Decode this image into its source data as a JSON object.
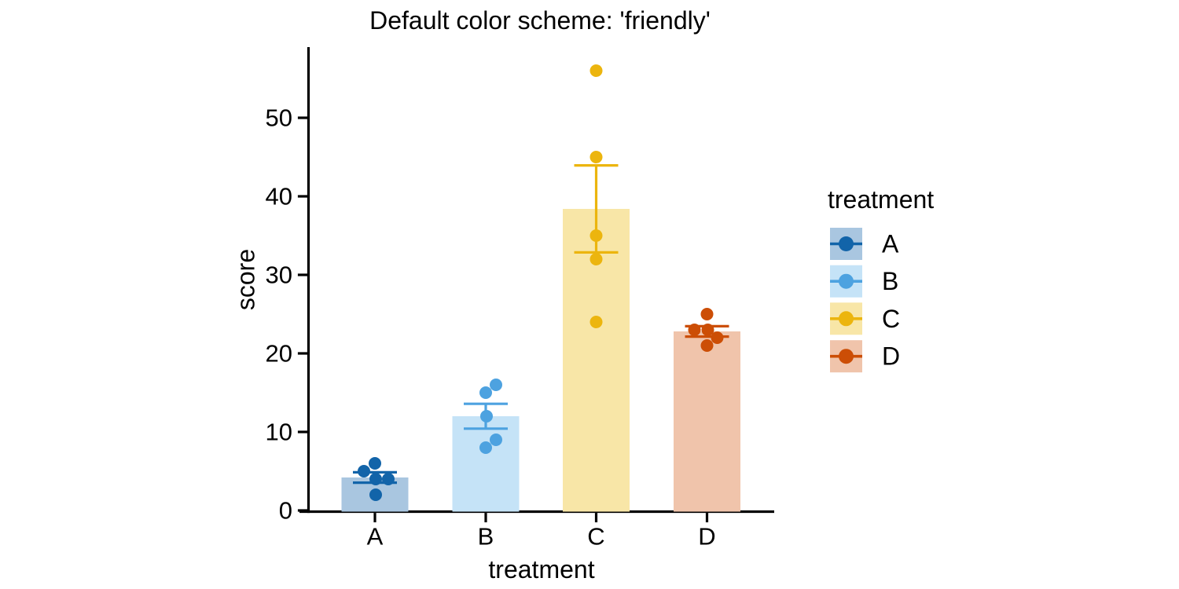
{
  "chart_data": {
    "type": "bar",
    "title": "Default color scheme: 'friendly'",
    "xlabel": "treatment",
    "ylabel": "score",
    "categories": [
      "A",
      "B",
      "C",
      "D"
    ],
    "series": [
      {
        "name": "A",
        "color": "#1264A9",
        "fill": "#A9C6E0",
        "values": [
          6,
          5,
          4,
          4,
          2
        ],
        "jitter_dx": [
          0,
          -14,
          1,
          17,
          1
        ],
        "mean": 4.2,
        "sem": 0.66
      },
      {
        "name": "B",
        "color": "#4DA2E0",
        "fill": "#C5E3F7",
        "values": [
          16,
          15,
          12,
          9,
          8
        ],
        "jitter_dx": [
          13,
          0,
          1,
          13,
          0
        ],
        "mean": 12.0,
        "sem": 1.58
      },
      {
        "name": "C",
        "color": "#ECB50E",
        "fill": "#F8E6A7",
        "values": [
          56,
          45,
          35,
          32,
          24
        ],
        "jitter_dx": [
          0,
          0,
          0,
          0,
          0
        ],
        "mean": 38.4,
        "sem": 5.54
      },
      {
        "name": "D",
        "color": "#CC4E06",
        "fill": "#F0C4AB",
        "values": [
          25,
          23,
          23,
          22,
          21
        ],
        "jitter_dx": [
          0,
          -16,
          1,
          13,
          0
        ],
        "mean": 22.8,
        "sem": 0.66
      }
    ],
    "error_bar": "sem",
    "yticks": [
      0,
      10,
      20,
      30,
      40,
      50
    ],
    "ylim": [
      0,
      59
    ],
    "grid": false,
    "legend": {
      "title": "treatment",
      "entries": [
        "A",
        "B",
        "C",
        "D"
      ],
      "position": "right"
    },
    "axis_color": "#000000",
    "background": "#ffffff"
  }
}
